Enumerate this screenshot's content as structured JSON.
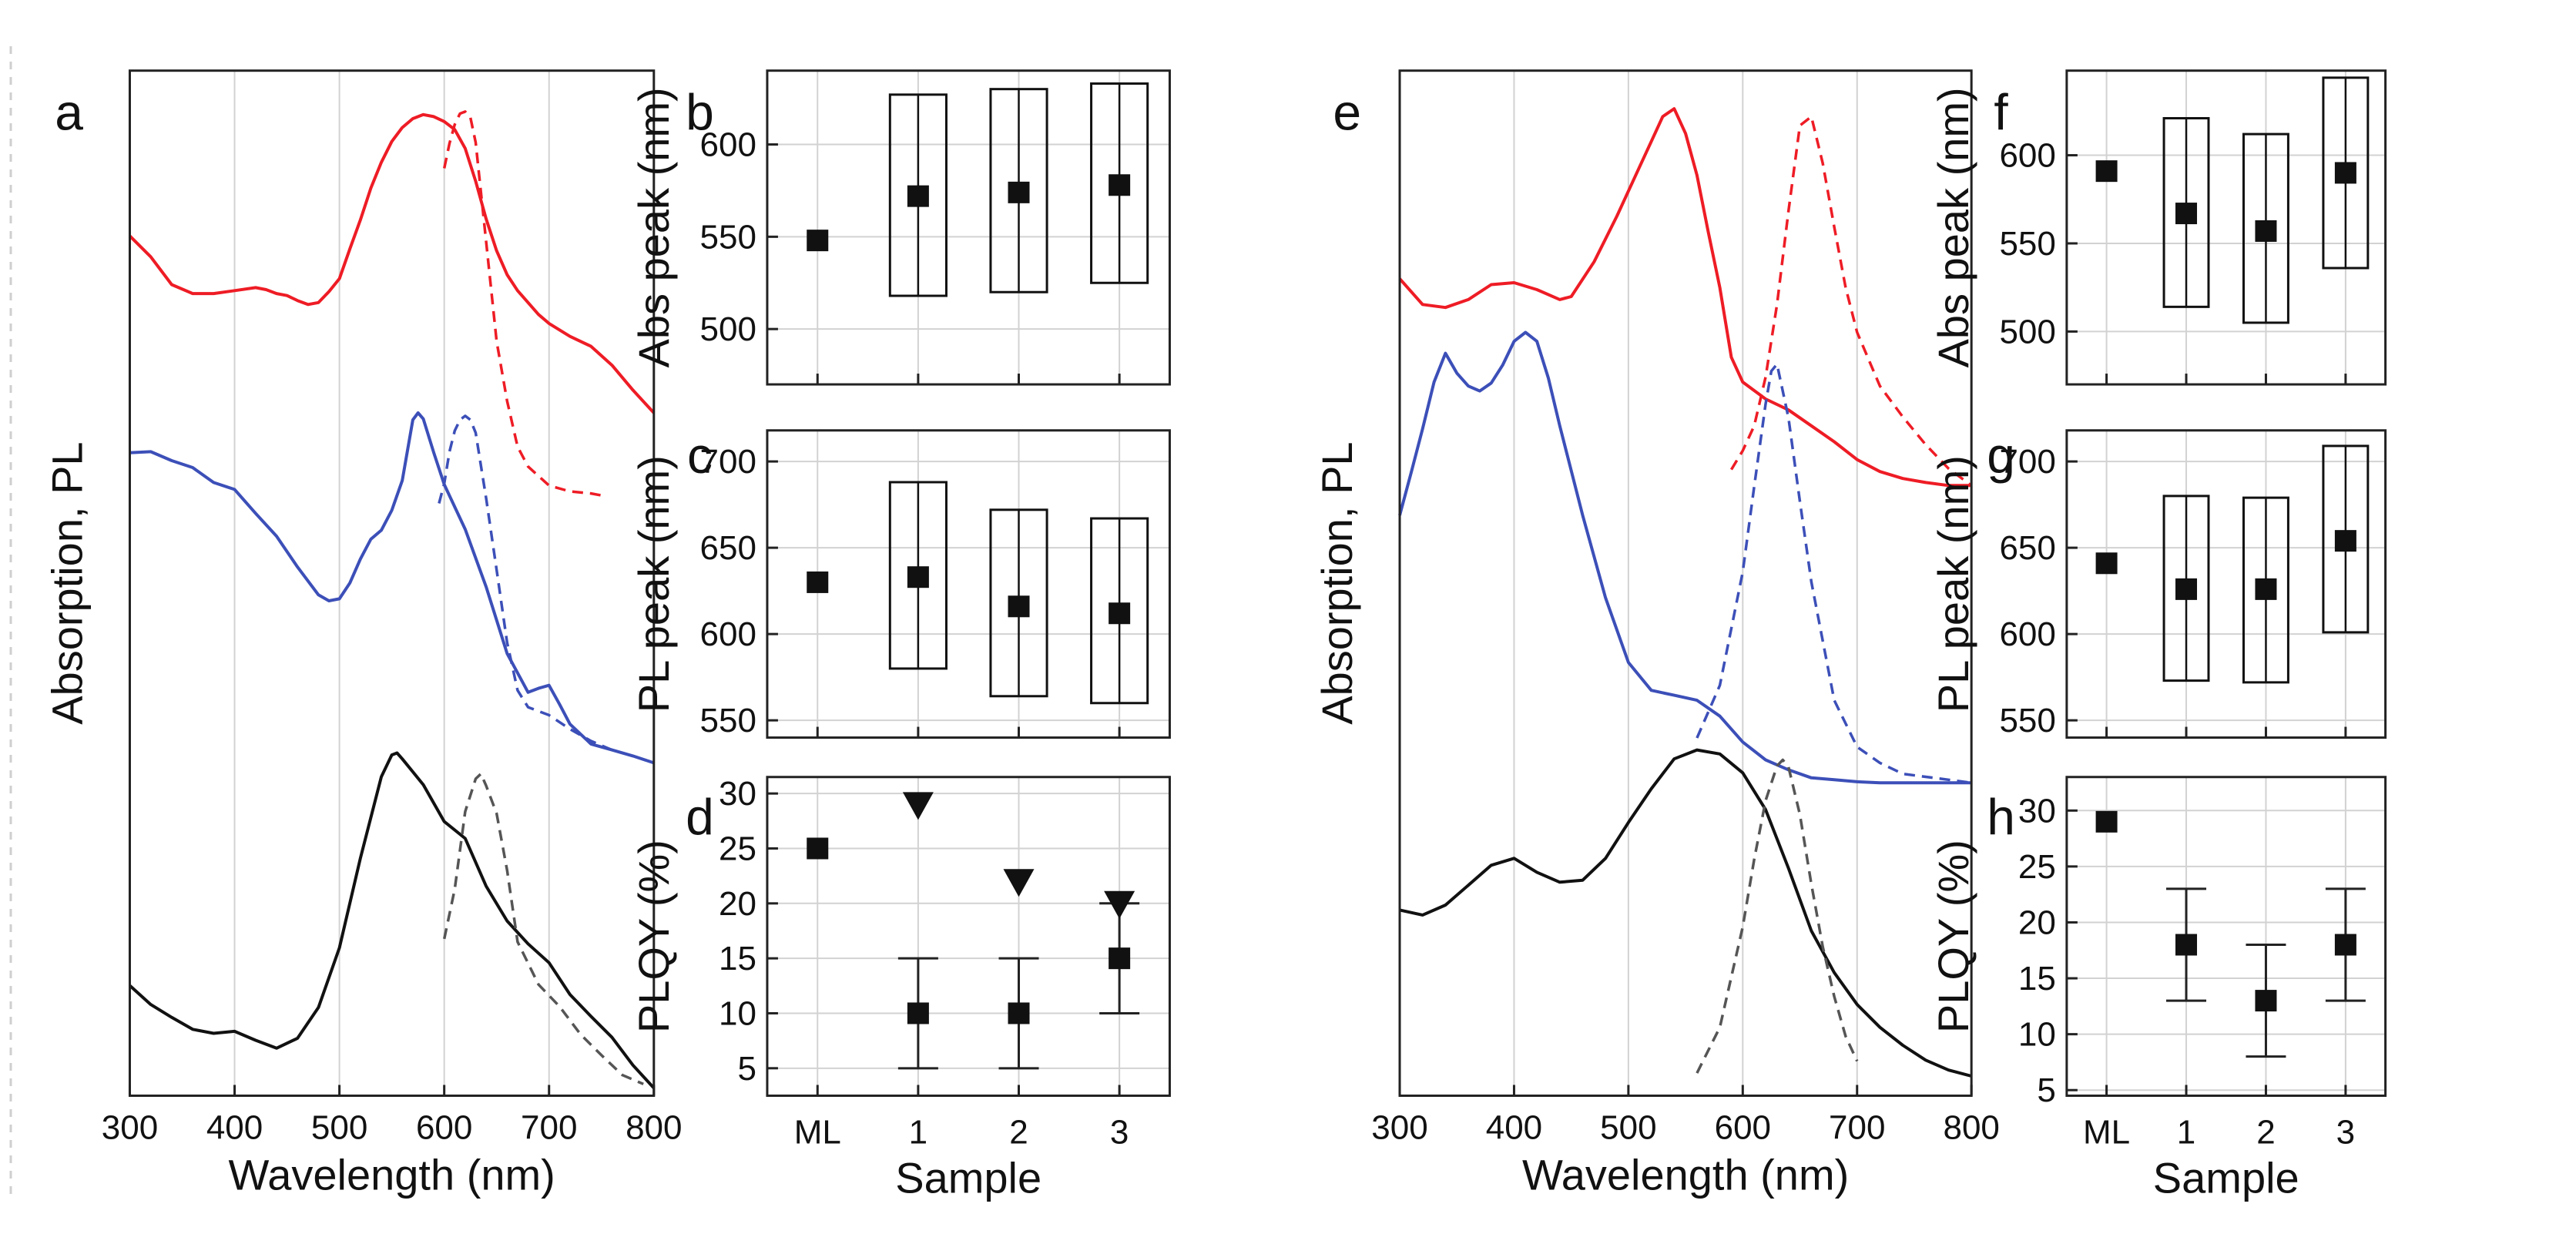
{
  "chart_data": [
    {
      "panel": "a",
      "type": "line",
      "xlabel": "Wavelength (nm)",
      "ylabel": "Absorption, PL",
      "xlim": [
        300,
        800
      ],
      "ylim": [
        0,
        1
      ],
      "xticks": [
        "300",
        "400",
        "500",
        "600",
        "700",
        "800"
      ],
      "series": [
        {
          "name": "red absorption",
          "color": "#ee1c25",
          "style": "solid",
          "x": [
            300,
            320,
            340,
            360,
            380,
            400,
            420,
            430,
            440,
            450,
            460,
            470,
            480,
            490,
            500,
            510,
            520,
            530,
            540,
            550,
            560,
            570,
            580,
            590,
            600,
            610,
            620,
            630,
            640,
            650,
            660,
            670,
            680,
            690,
            700,
            720,
            740,
            760,
            780,
            800
          ],
          "y": [
            0.857,
            0.836,
            0.808,
            0.799,
            0.799,
            0.802,
            0.805,
            0.803,
            0.799,
            0.797,
            0.792,
            0.788,
            0.79,
            0.801,
            0.814,
            0.844,
            0.873,
            0.905,
            0.931,
            0.952,
            0.966,
            0.975,
            0.979,
            0.977,
            0.972,
            0.964,
            0.945,
            0.912,
            0.874,
            0.842,
            0.818,
            0.802,
            0.79,
            0.778,
            0.769,
            0.756,
            0.746,
            0.727,
            0.702,
            0.679
          ]
        },
        {
          "name": "red PL",
          "color": "#ee1c25",
          "style": "dash",
          "x": [
            600,
            605,
            610,
            615,
            620,
            625,
            630,
            640,
            650,
            660,
            670,
            680,
            700,
            720,
            740,
            750
          ],
          "y": [
            0.925,
            0.95,
            0.969,
            0.98,
            0.982,
            0.976,
            0.951,
            0.851,
            0.751,
            0.691,
            0.645,
            0.625,
            0.606,
            0.6,
            0.598,
            0.596
          ]
        },
        {
          "name": "blue absorption",
          "color": "#3c4fb8",
          "style": "solid",
          "x": [
            300,
            320,
            340,
            360,
            380,
            400,
            420,
            440,
            460,
            480,
            490,
            500,
            510,
            520,
            530,
            540,
            550,
            560,
            570,
            575,
            580,
            590,
            600,
            620,
            640,
            660,
            680,
            690,
            700,
            710,
            720,
            740,
            760,
            780,
            800
          ],
          "y": [
            0.639,
            0.64,
            0.631,
            0.624,
            0.609,
            0.602,
            0.578,
            0.555,
            0.524,
            0.496,
            0.49,
            0.492,
            0.508,
            0.532,
            0.552,
            0.561,
            0.581,
            0.611,
            0.672,
            0.679,
            0.673,
            0.639,
            0.607,
            0.562,
            0.504,
            0.437,
            0.398,
            0.402,
            0.405,
            0.386,
            0.366,
            0.346,
            0.34,
            0.334,
            0.327
          ]
        },
        {
          "name": "blue PL",
          "color": "#3c4fb8",
          "style": "dash",
          "x": [
            595,
            600,
            605,
            610,
            615,
            620,
            625,
            630,
            640,
            650,
            660,
            670,
            680,
            700,
            720,
            740,
            760,
            780,
            800
          ],
          "y": [
            0.588,
            0.608,
            0.64,
            0.661,
            0.672,
            0.676,
            0.672,
            0.659,
            0.593,
            0.521,
            0.448,
            0.4,
            0.383,
            0.375,
            0.361,
            0.349,
            0.34,
            0.334,
            0.327
          ]
        },
        {
          "name": "black absorption",
          "color": "#111111",
          "style": "solid",
          "x": [
            300,
            320,
            340,
            360,
            380,
            400,
            420,
            440,
            460,
            480,
            500,
            520,
            540,
            550,
            555,
            560,
            570,
            580,
            600,
            620,
            640,
            660,
            680,
            700,
            720,
            740,
            760,
            780,
            800
          ],
          "y": [
            0.103,
            0.084,
            0.071,
            0.059,
            0.055,
            0.057,
            0.048,
            0.04,
            0.05,
            0.081,
            0.141,
            0.231,
            0.313,
            0.335,
            0.337,
            0.331,
            0.318,
            0.305,
            0.268,
            0.251,
            0.203,
            0.168,
            0.145,
            0.126,
            0.094,
            0.072,
            0.051,
            0.023,
            0.0
          ]
        },
        {
          "name": "black PL",
          "color": "#555555",
          "style": "dash",
          "x": [
            600,
            610,
            620,
            630,
            635,
            640,
            650,
            660,
            670,
            690,
            710,
            730,
            750,
            770,
            790
          ],
          "y": [
            0.15,
            0.2,
            0.278,
            0.311,
            0.316,
            0.304,
            0.276,
            0.219,
            0.147,
            0.104,
            0.082,
            0.054,
            0.033,
            0.013,
            0.004
          ]
        }
      ]
    },
    {
      "panel": "b",
      "type": "box",
      "xlabel": "",
      "ylabel": "Abs peak (nm)",
      "categories": [
        "ML",
        "1",
        "2",
        "3"
      ],
      "ylim": [
        470,
        640
      ],
      "yticks": [
        "500",
        "550",
        "600"
      ],
      "points": [
        548,
        572,
        574,
        578
      ],
      "boxes": [
        null,
        [
          518,
          627
        ],
        [
          520,
          630
        ],
        [
          525,
          633
        ]
      ]
    },
    {
      "panel": "c",
      "type": "box",
      "xlabel": "",
      "ylabel": "PL peak (nm)",
      "categories": [
        "ML",
        "1",
        "2",
        "3"
      ],
      "ylim": [
        540,
        718
      ],
      "yticks": [
        "550",
        "600",
        "650",
        "700"
      ],
      "points": [
        630,
        633,
        616,
        612
      ],
      "boxes": [
        null,
        [
          580,
          688
        ],
        [
          564,
          672
        ],
        [
          560,
          667
        ]
      ]
    },
    {
      "panel": "d",
      "type": "scatter",
      "xlabel": "Sample",
      "ylabel": "PLQY (%)",
      "categories": [
        "ML",
        "1",
        "2",
        "3"
      ],
      "ylim": [
        2.5,
        31.5
      ],
      "yticks": [
        "5",
        "10",
        "15",
        "20",
        "25",
        "30"
      ],
      "points": [
        25,
        10,
        10,
        15
      ],
      "errors": [
        null,
        [
          5,
          15
        ],
        [
          5,
          15
        ],
        [
          10,
          20
        ]
      ],
      "triangles": [
        null,
        29,
        22,
        20
      ]
    },
    {
      "panel": "e",
      "type": "line",
      "xlabel": "Wavelength (nm)",
      "ylabel": "Absorption, PL",
      "xlim": [
        300,
        800
      ],
      "ylim": [
        0,
        1
      ],
      "xticks": [
        "300",
        "400",
        "500",
        "600",
        "700",
        "800"
      ],
      "series": [
        {
          "name": "red absorption",
          "color": "#ee1c25",
          "style": "solid",
          "x": [
            300,
            320,
            340,
            360,
            380,
            400,
            420,
            440,
            450,
            470,
            490,
            510,
            520,
            530,
            540,
            550,
            560,
            570,
            580,
            590,
            600,
            620,
            640,
            660,
            680,
            700,
            720,
            740,
            760,
            780,
            800
          ],
          "y": [
            0.814,
            0.788,
            0.785,
            0.793,
            0.808,
            0.81,
            0.803,
            0.793,
            0.796,
            0.831,
            0.877,
            0.927,
            0.952,
            0.977,
            0.985,
            0.96,
            0.918,
            0.86,
            0.805,
            0.735,
            0.71,
            0.693,
            0.682,
            0.666,
            0.65,
            0.632,
            0.62,
            0.613,
            0.609,
            0.606,
            0.606
          ]
        },
        {
          "name": "red PL",
          "color": "#ee1c25",
          "style": "dash",
          "x": [
            590,
            600,
            610,
            620,
            630,
            640,
            650,
            660,
            670,
            680,
            690,
            700,
            720,
            740,
            760,
            780,
            800
          ],
          "y": [
            0.622,
            0.641,
            0.666,
            0.715,
            0.788,
            0.882,
            0.968,
            0.977,
            0.93,
            0.866,
            0.805,
            0.76,
            0.706,
            0.675,
            0.647,
            0.623,
            0.606
          ]
        },
        {
          "name": "blue absorption",
          "color": "#3c4fb8",
          "style": "solid",
          "x": [
            300,
            310,
            320,
            330,
            340,
            350,
            360,
            370,
            380,
            390,
            400,
            410,
            420,
            430,
            440,
            460,
            480,
            500,
            520,
            540,
            560,
            580,
            600,
            620,
            640,
            660,
            680,
            700,
            720,
            740,
            760,
            780,
            800
          ],
          "y": [
            0.576,
            0.619,
            0.663,
            0.71,
            0.739,
            0.719,
            0.706,
            0.701,
            0.709,
            0.727,
            0.751,
            0.76,
            0.751,
            0.714,
            0.666,
            0.576,
            0.493,
            0.428,
            0.4,
            0.395,
            0.39,
            0.374,
            0.348,
            0.33,
            0.32,
            0.312,
            0.31,
            0.308,
            0.307,
            0.307,
            0.307,
            0.307,
            0.307
          ]
        },
        {
          "name": "blue PL",
          "color": "#3c4fb8",
          "style": "dash",
          "x": [
            560,
            580,
            600,
            610,
            620,
            625,
            630,
            640,
            650,
            660,
            680,
            700,
            720,
            740,
            760,
            780,
            800
          ],
          "y": [
            0.352,
            0.405,
            0.519,
            0.605,
            0.688,
            0.721,
            0.728,
            0.674,
            0.59,
            0.509,
            0.39,
            0.343,
            0.327,
            0.316,
            0.313,
            0.31,
            0.307
          ]
        },
        {
          "name": "black absorption",
          "color": "#111111",
          "style": "solid",
          "x": [
            300,
            320,
            340,
            360,
            380,
            400,
            420,
            440,
            460,
            480,
            500,
            520,
            540,
            560,
            580,
            600,
            620,
            640,
            660,
            680,
            700,
            720,
            740,
            760,
            780,
            800
          ],
          "y": [
            0.179,
            0.174,
            0.184,
            0.204,
            0.224,
            0.231,
            0.217,
            0.207,
            0.209,
            0.231,
            0.267,
            0.301,
            0.331,
            0.34,
            0.336,
            0.317,
            0.28,
            0.221,
            0.158,
            0.116,
            0.084,
            0.061,
            0.043,
            0.028,
            0.018,
            0.012
          ]
        },
        {
          "name": "black PL",
          "color": "#555555",
          "style": "dash",
          "x": [
            560,
            580,
            600,
            610,
            620,
            630,
            635,
            640,
            650,
            660,
            670,
            680,
            690,
            700
          ],
          "y": [
            0.015,
            0.061,
            0.162,
            0.23,
            0.289,
            0.324,
            0.33,
            0.323,
            0.275,
            0.205,
            0.142,
            0.092,
            0.052,
            0.027
          ]
        }
      ]
    },
    {
      "panel": "f",
      "type": "box",
      "xlabel": "",
      "ylabel": "Abs peak (nm)",
      "categories": [
        "ML",
        "1",
        "2",
        "3"
      ],
      "ylim": [
        470,
        648
      ],
      "yticks": [
        "500",
        "550",
        "600"
      ],
      "points": [
        591,
        567,
        557,
        590
      ],
      "boxes": [
        null,
        [
          514,
          621
        ],
        [
          505,
          612
        ],
        [
          536,
          644
        ]
      ]
    },
    {
      "panel": "g",
      "type": "box",
      "xlabel": "",
      "ylabel": "PL peak (nm)",
      "categories": [
        "ML",
        "1",
        "2",
        "3"
      ],
      "ylim": [
        540,
        718
      ],
      "yticks": [
        "550",
        "600",
        "650",
        "700"
      ],
      "points": [
        641,
        626,
        626,
        654
      ],
      "boxes": [
        null,
        [
          573,
          680
        ],
        [
          572,
          679
        ],
        [
          601,
          709
        ]
      ]
    },
    {
      "panel": "h",
      "type": "scatter",
      "xlabel": "Sample",
      "ylabel": "PLQY (%)",
      "categories": [
        "ML",
        "1",
        "2",
        "3"
      ],
      "ylim": [
        4.5,
        33
      ],
      "yticks": [
        "5",
        "10",
        "15",
        "20",
        "25",
        "30"
      ],
      "points": [
        29,
        18,
        13,
        18
      ],
      "errors": [
        null,
        [
          13,
          23
        ],
        [
          8,
          18
        ],
        [
          13,
          23
        ]
      ],
      "triangles": [
        null,
        null,
        null,
        null
      ]
    }
  ]
}
